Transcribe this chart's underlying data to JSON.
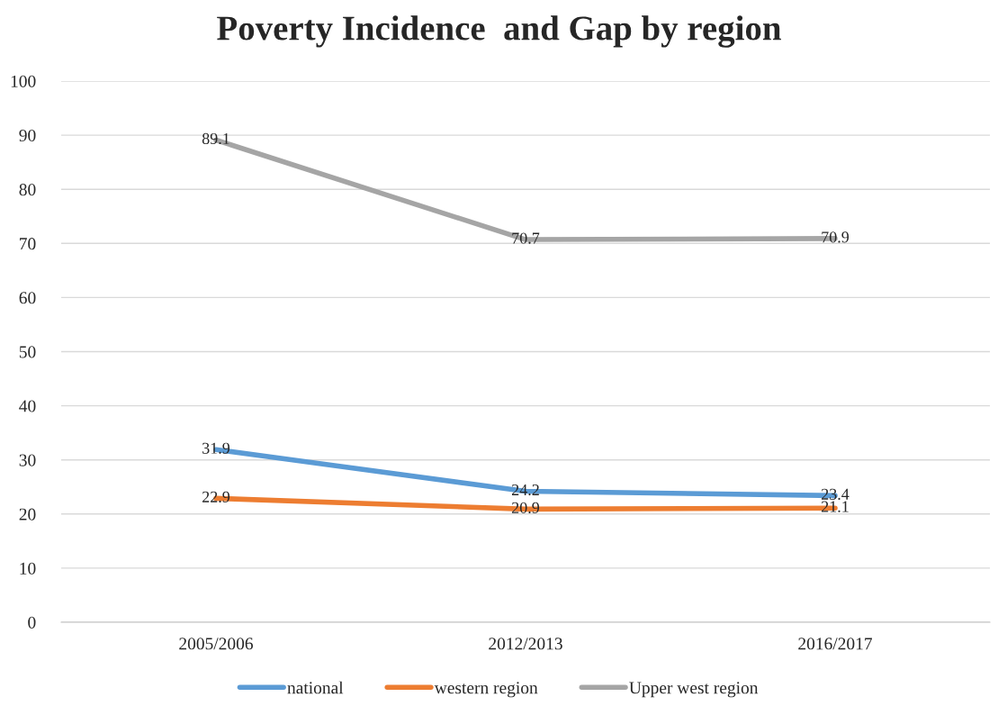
{
  "chart_data": {
    "type": "line",
    "title": "Poverty Incidence  and Gap by region",
    "categories": [
      "2005/2006",
      "2012/2013",
      "2016/2017"
    ],
    "series": [
      {
        "name": "national",
        "color": "#5b9bd5",
        "values": [
          31.9,
          24.2,
          23.4
        ]
      },
      {
        "name": "western region",
        "color": "#ed7d31",
        "values": [
          22.9,
          20.9,
          21.1
        ]
      },
      {
        "name": "Upper west region",
        "color": "#a5a5a5",
        "values": [
          89.1,
          70.7,
          70.9
        ]
      }
    ],
    "ylim": [
      0,
      100
    ],
    "yticks": [
      0,
      10,
      20,
      30,
      40,
      50,
      60,
      70,
      80,
      90,
      100
    ],
    "grid": "y",
    "legend": "bottom",
    "data_labels": true,
    "marker": "none",
    "line_style": "solid"
  }
}
